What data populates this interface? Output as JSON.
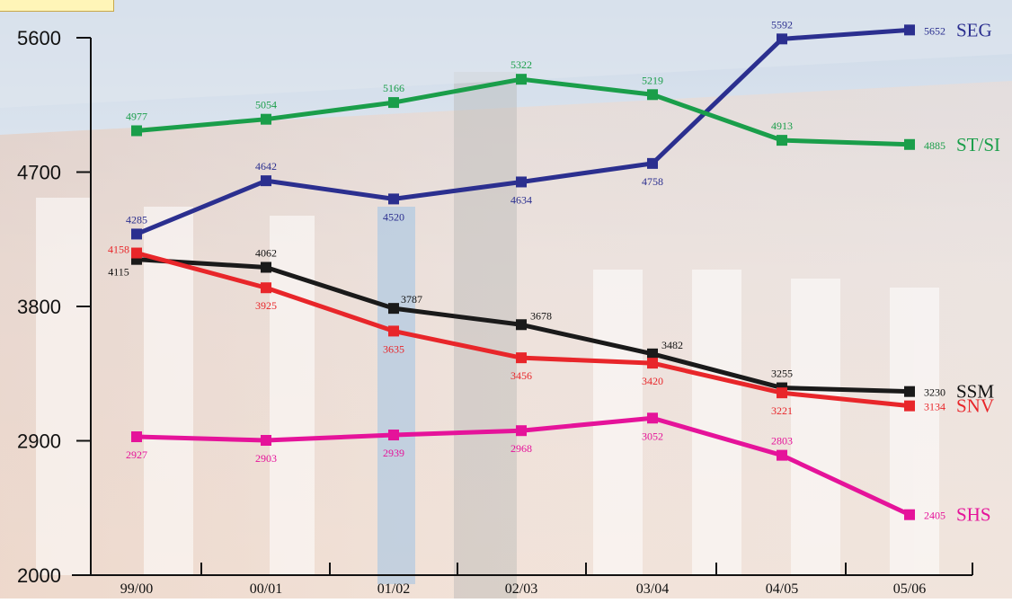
{
  "chart_data": {
    "type": "line",
    "title": "",
    "xlabel": "",
    "ylabel": "",
    "ylim": [
      2000,
      5600
    ],
    "yticks": [
      2000,
      2900,
      3800,
      4700,
      5600
    ],
    "grid": false,
    "legend": "series names at right end of each line",
    "categories": [
      "99/00",
      "00/01",
      "01/02",
      "02/03",
      "03/04",
      "04/05",
      "05/06"
    ],
    "series": [
      {
        "name": "SEG",
        "color": "#2b2f8f",
        "values": [
          4285,
          4642,
          4520,
          4634,
          4758,
          5592,
          5652
        ]
      },
      {
        "name": "ST/SI",
        "color": "#1a9e4a",
        "values": [
          4977,
          5054,
          5166,
          5322,
          5219,
          4913,
          4885
        ]
      },
      {
        "name": "SSM",
        "color": "#1a1a1a",
        "values": [
          4115,
          4062,
          3787,
          3678,
          3482,
          3255,
          3230
        ]
      },
      {
        "name": "SNV",
        "color": "#e8262a",
        "values": [
          4158,
          3925,
          3635,
          3456,
          3420,
          3221,
          3134
        ]
      },
      {
        "name": "SHS",
        "color": "#e5139a",
        "values": [
          2927,
          2903,
          2939,
          2968,
          3052,
          2803,
          2405
        ]
      }
    ]
  }
}
